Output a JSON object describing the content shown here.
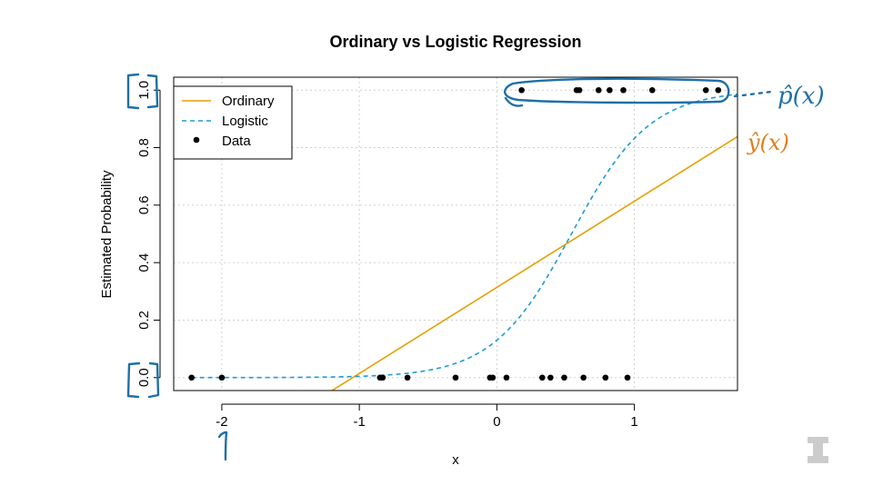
{
  "chart_data": {
    "type": "scatter",
    "title": "Ordinary vs Logistic Regression",
    "xlabel": "x",
    "ylabel": "Estimated Probability",
    "xlim": [
      -2.35,
      1.75
    ],
    "ylim": [
      -0.045,
      1.045
    ],
    "x_ticks": [
      -2,
      -1,
      0,
      1
    ],
    "y_ticks": [
      0.0,
      0.2,
      0.4,
      0.6,
      0.8,
      1.0
    ],
    "y_tick_labels": [
      "0.0",
      "0.2",
      "0.4",
      "0.6",
      "0.8",
      "1.0"
    ],
    "grid": true,
    "legend_position": "top-left",
    "series": [
      {
        "name": "Ordinary",
        "kind": "line",
        "color": "#e69f00",
        "intercept": 0.314,
        "slope": 0.2995
      },
      {
        "name": "Logistic",
        "kind": "dashed-curve",
        "color": "#1f9bd7",
        "logit_intercept": -1.9,
        "logit_slope": 3.5
      },
      {
        "name": "Data",
        "kind": "points",
        "color": "#000000",
        "points": [
          [
            -2.22,
            0
          ],
          [
            -2.0,
            0
          ],
          [
            -0.85,
            0
          ],
          [
            -0.83,
            0
          ],
          [
            -0.65,
            0
          ],
          [
            -0.3,
            0
          ],
          [
            -0.05,
            0
          ],
          [
            -0.03,
            0
          ],
          [
            0.07,
            0
          ],
          [
            0.33,
            0
          ],
          [
            0.39,
            0
          ],
          [
            0.49,
            0
          ],
          [
            0.63,
            0
          ],
          [
            0.79,
            0
          ],
          [
            0.95,
            0
          ],
          [
            0.18,
            1
          ],
          [
            0.58,
            1
          ],
          [
            0.6,
            1
          ],
          [
            0.74,
            1
          ],
          [
            0.82,
            1
          ],
          [
            0.92,
            1
          ],
          [
            1.13,
            1
          ],
          [
            1.52,
            1
          ],
          [
            1.61,
            1
          ]
        ]
      }
    ]
  },
  "annotations": {
    "p_hat": "p̂(x)",
    "y_hat": "ŷ(x)"
  },
  "colors": {
    "ink_blue": "#1f6fa8",
    "ink_orange": "#e07f1a",
    "logo_gray": "#cccccc"
  },
  "logo": {
    "icon": "block-i-logo-icon"
  }
}
